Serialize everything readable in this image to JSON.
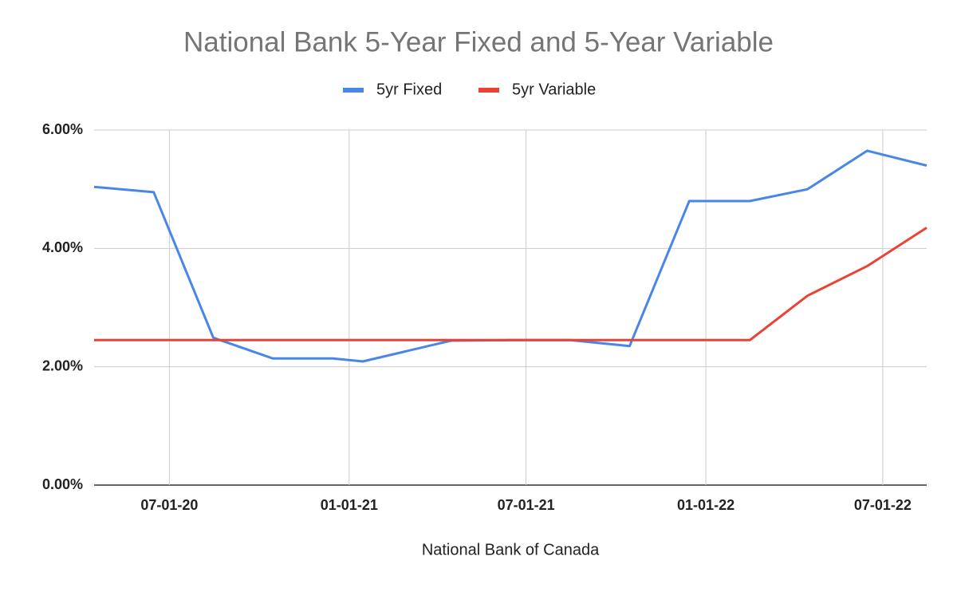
{
  "chart_data": {
    "type": "line",
    "title": "National Bank 5-Year Fixed and 5-Year Variable",
    "x_label": "National Bank of Canada",
    "x": [
      "2020-04-15",
      "2020-06-15",
      "2020-08-15",
      "2020-10-15",
      "2020-12-15",
      "2021-01-15",
      "2021-04-15",
      "2021-06-15",
      "2021-08-15",
      "2021-10-15",
      "2021-12-15",
      "2022-02-15",
      "2022-04-15",
      "2022-06-15",
      "2022-08-15"
    ],
    "series": [
      {
        "name": "5yr Fixed",
        "color": "#4a86e8",
        "values": [
          5.04,
          4.95,
          2.49,
          2.14,
          2.14,
          2.09,
          2.44,
          2.45,
          2.45,
          2.35,
          4.8,
          4.8,
          5.0,
          5.65,
          5.4
        ]
      },
      {
        "name": "5yr Variable",
        "color": "#ea4335",
        "values": [
          2.45,
          2.45,
          2.45,
          2.45,
          2.45,
          2.45,
          2.45,
          2.45,
          2.45,
          2.45,
          2.45,
          2.45,
          3.2,
          3.7,
          4.35
        ]
      }
    ],
    "xlim": [
      "2020-04-15",
      "2022-08-15"
    ],
    "xticks": [
      {
        "value": "2020-07-01",
        "label": "07-01-20"
      },
      {
        "value": "2021-01-01",
        "label": "01-01-21"
      },
      {
        "value": "2021-07-01",
        "label": "07-01-21"
      },
      {
        "value": "2022-01-01",
        "label": "01-01-22"
      },
      {
        "value": "2022-07-01",
        "label": "07-01-22"
      }
    ],
    "ylim": [
      0,
      6
    ],
    "yticks": [
      {
        "value": 0,
        "label": "0.00%"
      },
      {
        "value": 2,
        "label": "2.00%"
      },
      {
        "value": 4,
        "label": "4.00%"
      },
      {
        "value": 6,
        "label": "6.00%"
      }
    ],
    "grid": true,
    "legend": "top"
  }
}
